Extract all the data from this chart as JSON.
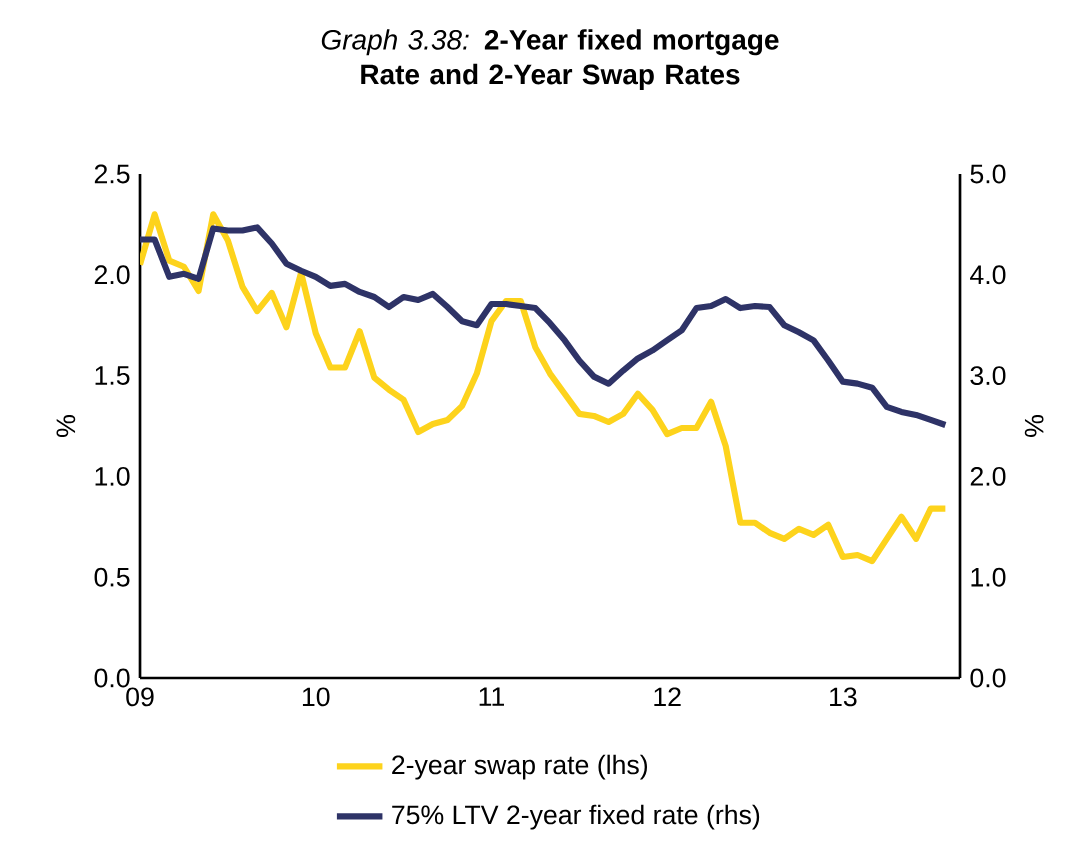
{
  "chart_data": {
    "type": "line",
    "title": "*Graph 3.38:* **2-Year fixed mortgage Rate and 2-Year Swap Rates**",
    "ylabel": "%",
    "y2label": "%",
    "x": [
      "2009-01",
      "2009-02",
      "2009-03",
      "2009-04",
      "2009-05",
      "2009-06",
      "2009-07",
      "2009-08",
      "2009-09",
      "2009-10",
      "2009-11",
      "2009-12",
      "2010-01",
      "2010-02",
      "2010-03",
      "2010-04",
      "2010-05",
      "2010-06",
      "2010-07",
      "2010-08",
      "2010-09",
      "2010-10",
      "2010-11",
      "2010-12",
      "2011-01",
      "2011-02",
      "2011-03",
      "2011-04",
      "2011-05",
      "2011-06",
      "2011-07",
      "2011-08",
      "2011-09",
      "2011-10",
      "2011-11",
      "2011-12",
      "2012-01",
      "2012-02",
      "2012-03",
      "2012-04",
      "2012-05",
      "2012-06",
      "2012-07",
      "2012-08",
      "2012-09",
      "2012-10",
      "2012-11",
      "2012-12",
      "2013-01",
      "2013-02",
      "2013-03",
      "2013-04",
      "2013-05",
      "2013-06",
      "2013-07",
      "2013-08"
    ],
    "series": [
      {
        "name": "2-year swap rate (lhs)",
        "color": "#fdd31c",
        "values": [
          2.05,
          2.3,
          2.07,
          2.04,
          1.92,
          2.3,
          2.17,
          1.94,
          1.82,
          1.91,
          1.74,
          2.01,
          1.71,
          1.54,
          1.54,
          1.72,
          1.49,
          1.43,
          1.38,
          1.22,
          1.26,
          1.28,
          1.35,
          1.51,
          1.77,
          1.87,
          1.87,
          1.64,
          1.51,
          1.41,
          1.31,
          1.3,
          1.27,
          1.31,
          1.41,
          1.33,
          1.21,
          1.24,
          1.24,
          1.37,
          1.15,
          0.77,
          0.77,
          0.72,
          0.69,
          0.74,
          0.71,
          0.76,
          0.6,
          0.61,
          0.58,
          0.69,
          0.8,
          0.69,
          0.84,
          0.84
        ]
      },
      {
        "name": "75% LTV 2-year fixed rate (rhs)",
        "color": "#2e3367",
        "axis": "y2",
        "values": [
          4.35,
          4.35,
          3.98,
          4.01,
          3.96,
          4.46,
          4.44,
          4.44,
          4.47,
          4.31,
          4.11,
          4.04,
          3.98,
          3.89,
          3.91,
          3.83,
          3.78,
          3.68,
          3.78,
          3.75,
          3.81,
          3.68,
          3.54,
          3.5,
          3.71,
          3.71,
          3.69,
          3.67,
          3.52,
          3.35,
          3.15,
          2.99,
          2.92,
          3.05,
          3.17,
          3.25,
          3.35,
          3.45,
          3.67,
          3.69,
          3.76,
          3.67,
          3.69,
          3.68,
          3.5,
          3.43,
          3.35,
          3.15,
          2.94,
          2.92,
          2.88,
          2.69,
          2.64,
          2.61,
          2.56,
          2.51
        ]
      }
    ],
    "xlim": [
      "2009-01",
      "2013-09"
    ],
    "xticks": [
      {
        "value": "2009-01",
        "label": "09"
      },
      {
        "value": "2010-01",
        "label": "10"
      },
      {
        "value": "2011-01",
        "label": "11"
      },
      {
        "value": "2012-01",
        "label": "12"
      },
      {
        "value": "2013-01",
        "label": "13"
      }
    ],
    "ylim": [
      0,
      2.5
    ],
    "yticks": [
      {
        "value": 0,
        "label": "0.0"
      },
      {
        "value": 0.5,
        "label": "0.5"
      },
      {
        "value": 1,
        "label": "1.0"
      },
      {
        "value": 1.5,
        "label": "1.5"
      },
      {
        "value": 2,
        "label": "2.0"
      },
      {
        "value": 2.5,
        "label": "2.5"
      }
    ],
    "y2lim": [
      0,
      5
    ],
    "y2ticks": [
      {
        "value": 0,
        "label": "0.0"
      },
      {
        "value": 1,
        "label": "1.0"
      },
      {
        "value": 2,
        "label": "2.0"
      },
      {
        "value": 3,
        "label": "3.0"
      },
      {
        "value": 4,
        "label": "4.0"
      },
      {
        "value": 5,
        "label": "5.0"
      }
    ],
    "grid": false,
    "legend": "bottom",
    "marker": "none",
    "line_style": "solid"
  }
}
